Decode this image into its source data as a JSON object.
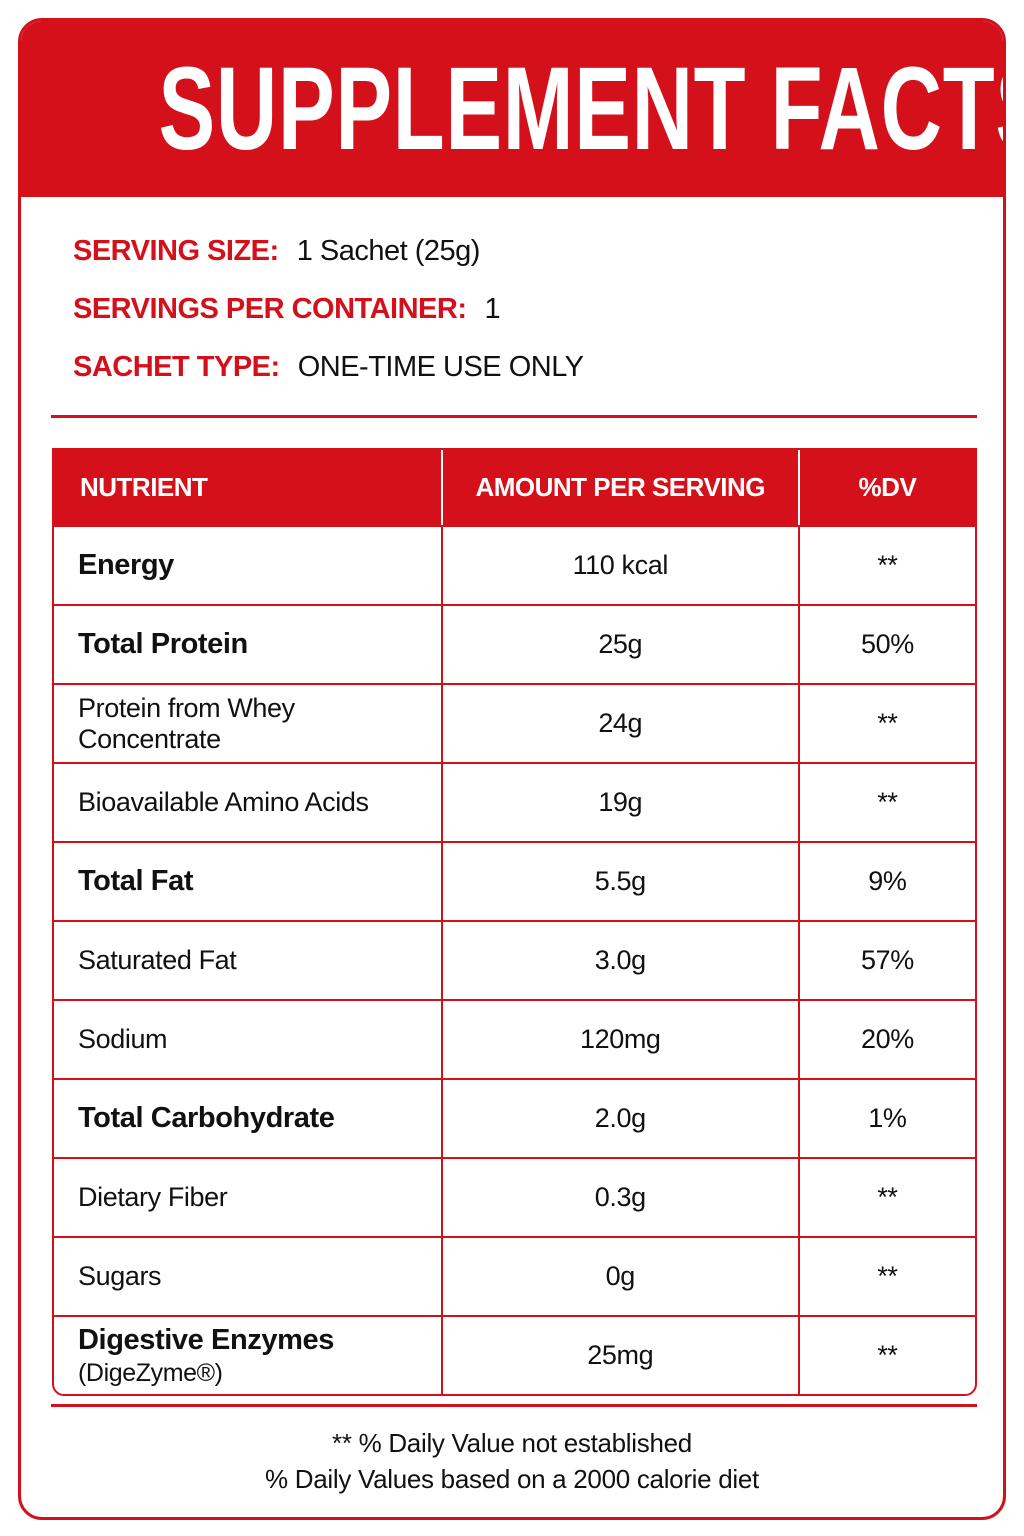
{
  "header": {
    "title": "SUPPLEMENT FACTS"
  },
  "serving_info": [
    {
      "label": "SERVING SIZE:",
      "value": "1 Sachet (25g)"
    },
    {
      "label": "SERVINGS PER CONTAINER:",
      "value": "1"
    },
    {
      "label": "SACHET TYPE:",
      "value": "ONE-TIME USE ONLY"
    }
  ],
  "table": {
    "columns": [
      "NUTRIENT",
      "AMOUNT PER SERVING",
      "%DV"
    ],
    "rows": [
      {
        "nutrient": "Energy",
        "amount": "110 kcal",
        "dv": "**",
        "bold": true
      },
      {
        "nutrient": "Total Protein",
        "amount": "25g",
        "dv": "50%",
        "bold": true
      },
      {
        "nutrient": "Protein from Whey Concentrate",
        "amount": "24g",
        "dv": "**",
        "bold": false
      },
      {
        "nutrient": "Bioavailable Amino Acids",
        "amount": "19g",
        "dv": "**",
        "bold": false
      },
      {
        "nutrient": "Total Fat",
        "amount": "5.5g",
        "dv": "9%",
        "bold": true
      },
      {
        "nutrient": "Saturated Fat",
        "amount": "3.0g",
        "dv": "57%",
        "bold": false
      },
      {
        "nutrient": "Sodium",
        "amount": "120mg",
        "dv": "20%",
        "bold": false
      },
      {
        "nutrient": "Total Carbohydrate",
        "amount": "2.0g",
        "dv": "1%",
        "bold": true
      },
      {
        "nutrient": "Dietary Fiber",
        "amount": "0.3g",
        "dv": "**",
        "bold": false
      },
      {
        "nutrient": "Sugars",
        "amount": "0g",
        "dv": "**",
        "bold": false
      },
      {
        "nutrient": "Digestive Enzymes",
        "note": "(DigeZyme®)",
        "amount": "25mg",
        "dv": "**",
        "bold": true
      }
    ]
  },
  "footer": {
    "notes": [
      "** % Daily Value not established",
      "% Daily Values based on a 2000 calorie diet"
    ]
  }
}
